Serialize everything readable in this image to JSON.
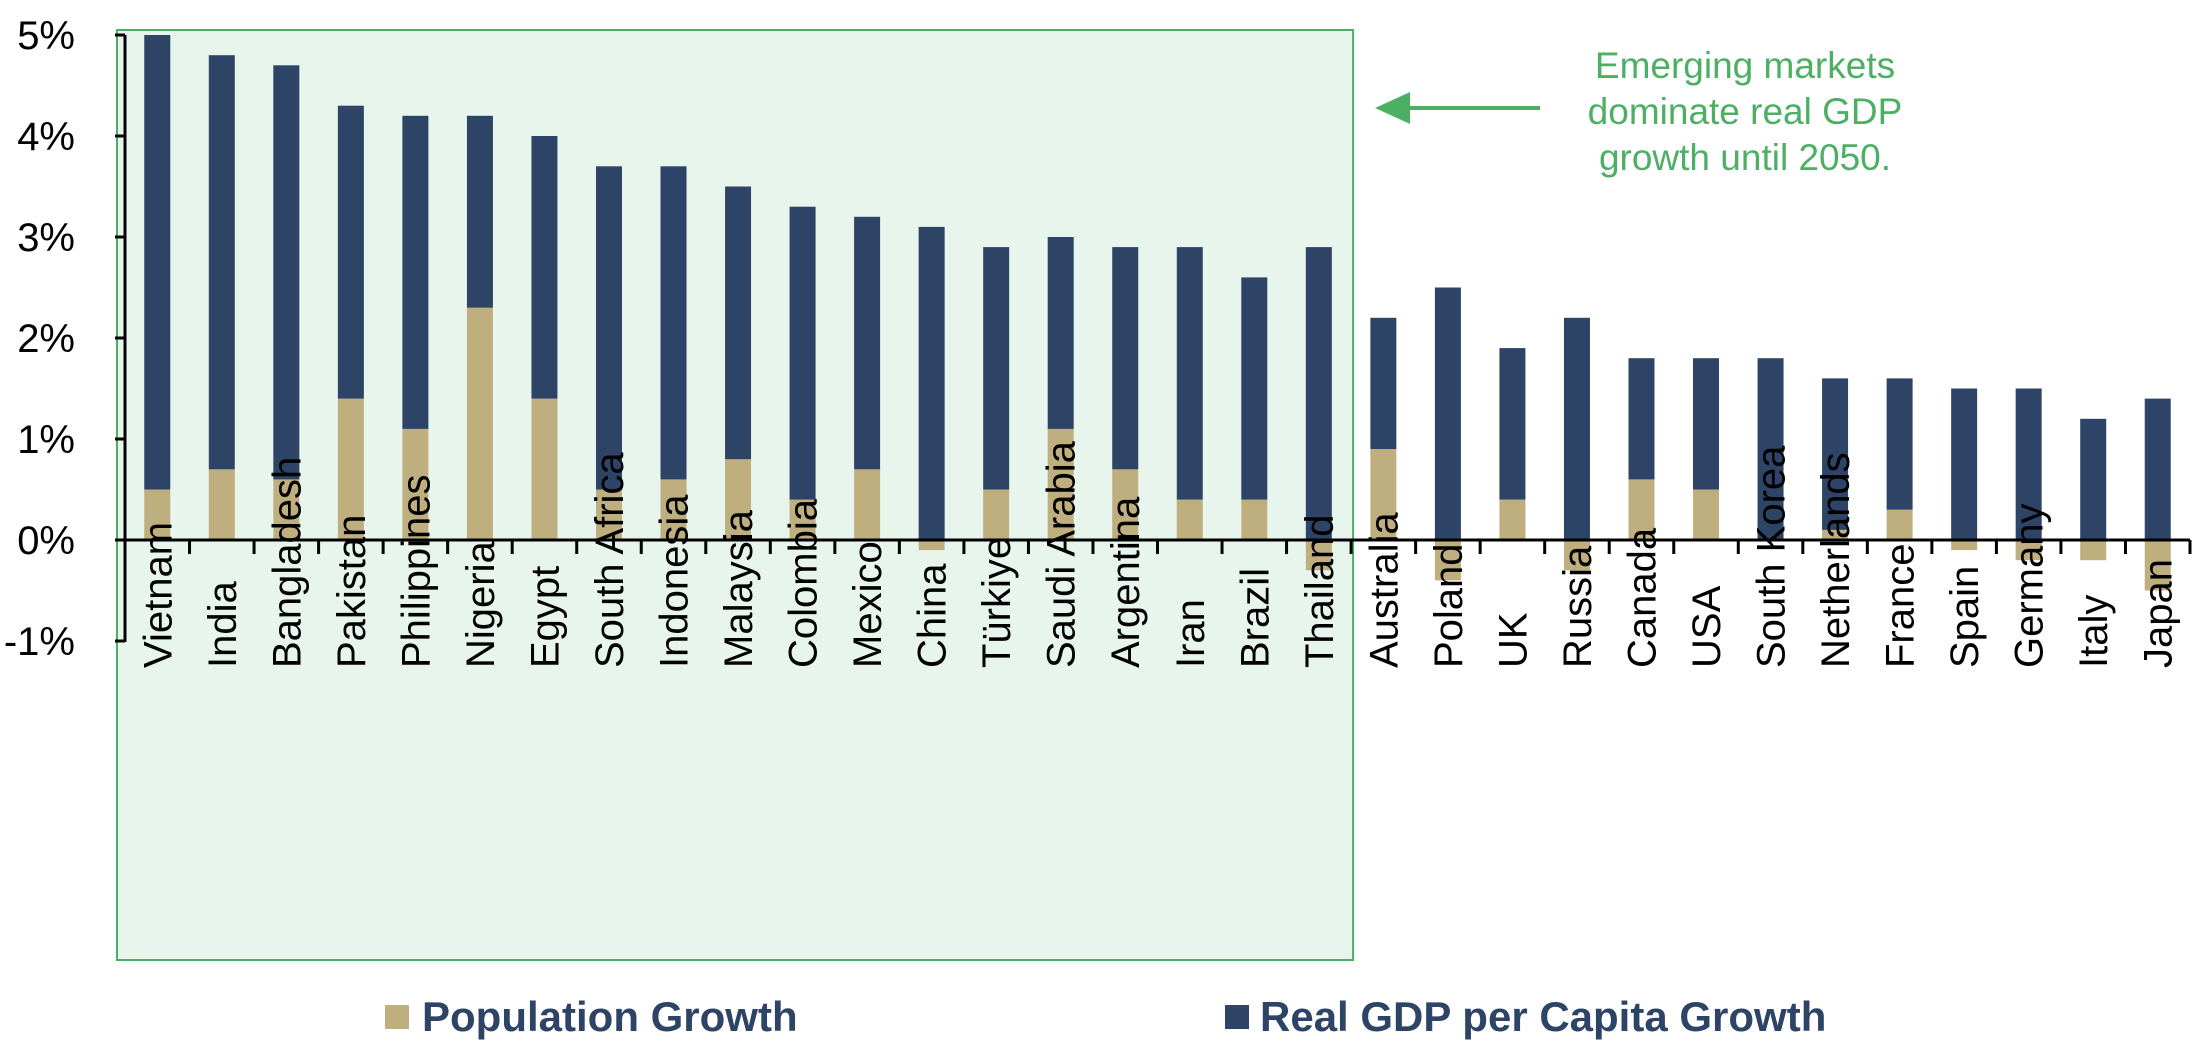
{
  "chart_data": {
    "type": "bar",
    "stacked": true,
    "categories": [
      "Vietnam",
      "India",
      "Bangladesh",
      "Pakistan",
      "Philippines",
      "Nigeria",
      "Egypt",
      "South Africa",
      "Indonesia",
      "Malaysia",
      "Colombia",
      "Mexico",
      "China",
      "Türkiye",
      "Saudi Arabia",
      "Argentina",
      "Iran",
      "Brazil",
      "Thailand",
      "Australia",
      "Poland",
      "UK",
      "Russia",
      "Canada",
      "USA",
      "South Korea",
      "Netherlands",
      "France",
      "Spain",
      "Germany",
      "Italy",
      "Japan"
    ],
    "series": [
      {
        "name": "Population Growth",
        "color": "#BFAE7E",
        "values": [
          0.5,
          0.7,
          0.6,
          1.4,
          1.1,
          2.3,
          1.4,
          0.5,
          0.6,
          0.8,
          0.4,
          0.7,
          -0.1,
          0.5,
          1.1,
          0.7,
          0.4,
          0.4,
          -0.3,
          0.9,
          -0.4,
          0.4,
          -0.3,
          0.6,
          0.5,
          0.0,
          0.1,
          0.3,
          -0.1,
          -0.2,
          -0.2,
          -0.5
        ]
      },
      {
        "name": "Real GDP per Capita Growth",
        "color": "#2E4466",
        "values": [
          4.5,
          4.1,
          4.1,
          2.9,
          3.1,
          1.9,
          2.6,
          3.2,
          3.1,
          2.7,
          2.9,
          2.5,
          3.1,
          2.4,
          1.9,
          2.2,
          2.5,
          2.2,
          2.9,
          1.3,
          2.5,
          1.5,
          2.2,
          1.2,
          1.3,
          1.8,
          1.5,
          1.3,
          1.5,
          1.5,
          1.2,
          1.4
        ]
      }
    ],
    "ylim": [
      -1,
      5
    ],
    "yticks": [
      "-1%",
      "0%",
      "1%",
      "2%",
      "3%",
      "4%",
      "5%"
    ],
    "ytick_values": [
      -1,
      0,
      1,
      2,
      3,
      4,
      5
    ],
    "highlight_count": 19,
    "highlight_fill": "#E8F5EC",
    "highlight_border": "#4CAF63",
    "annotation": [
      "Emerging markets",
      "dominate real GDP",
      "growth until 2050."
    ],
    "annotation_color": "#4CAF63",
    "legend": [
      "Population Growth",
      "Real GDP per Capita Growth"
    ],
    "legend_placement": "bottom",
    "grid": false,
    "title": "",
    "xlabel": "",
    "ylabel": ""
  }
}
